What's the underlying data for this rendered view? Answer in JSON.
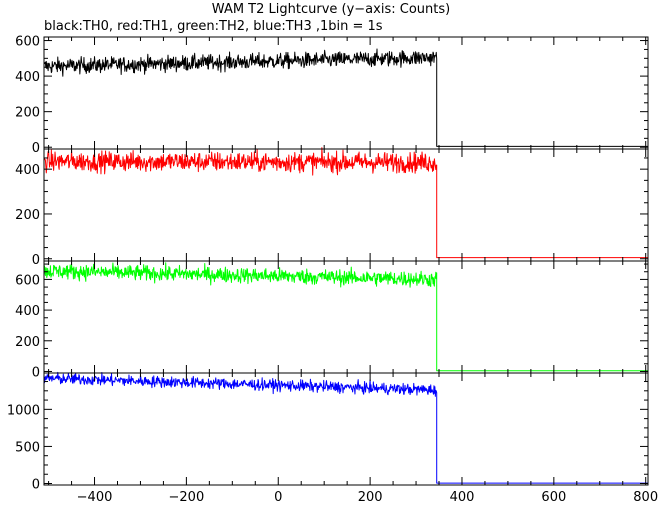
{
  "chart_data": {
    "type": "line",
    "title": "WAM T2 Lightcurve (y−axis: Counts)",
    "subtitle": "black:TH0, red:TH1, green:TH2, blue:TH3 ,1bin = 1s",
    "xlabel": "",
    "ylabel": "",
    "xlim": [
      -510,
      805
    ],
    "x_ticks": [
      -400,
      -200,
      0,
      200,
      400,
      600,
      800
    ],
    "x_tick_labels": [
      "−400",
      "−200",
      "0",
      "200",
      "400",
      "600",
      "800"
    ],
    "grid": false,
    "bin_seconds": 1,
    "panels": [
      {
        "name": "TH0",
        "color": "#000000",
        "ylim": [
          -10,
          620
        ],
        "y_ticks": [
          0,
          200,
          400,
          600
        ],
        "y_tick_labels": [
          "0",
          "200",
          "400",
          "600"
        ],
        "level_start": 455,
        "level_end": 505,
        "noise": 22,
        "drop_x": 345,
        "after_level": 5
      },
      {
        "name": "TH1",
        "color": "#ff0000",
        "ylim": [
          -10,
          490
        ],
        "y_ticks": [
          0,
          200,
          400
        ],
        "y_tick_labels": [
          "0",
          "200",
          "400"
        ],
        "level_start": 435,
        "level_end": 430,
        "noise": 22,
        "drop_x": 345,
        "after_level": 5
      },
      {
        "name": "TH2",
        "color": "#00ff00",
        "ylim": [
          -10,
          720
        ],
        "y_ticks": [
          0,
          200,
          400,
          600
        ],
        "y_tick_labels": [
          "0",
          "200",
          "400",
          "600"
        ],
        "level_start": 655,
        "level_end": 600,
        "noise": 25,
        "drop_x": 345,
        "after_level": 5
      },
      {
        "name": "TH3",
        "color": "#0000ff",
        "ylim": [
          -20,
          1490
        ],
        "y_ticks": [
          0,
          500,
          1000
        ],
        "y_tick_labels": [
          "0",
          "500",
          "1000"
        ],
        "level_start": 1420,
        "level_end": 1260,
        "noise": 38,
        "drop_x": 345,
        "after_level": 5
      }
    ]
  }
}
